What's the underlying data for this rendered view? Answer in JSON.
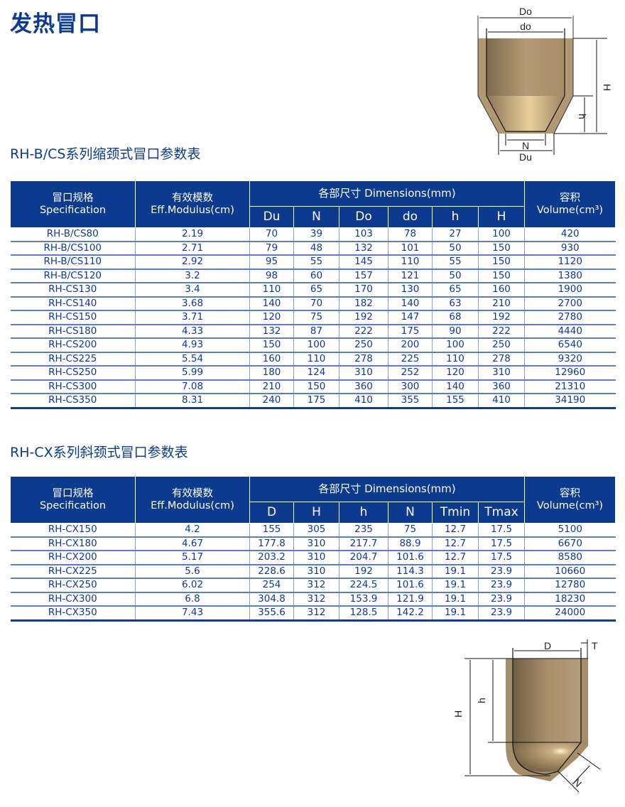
{
  "title": "发热冒口",
  "table1": {
    "heading": "RH-B/CS系列缩颈式冒口参数表",
    "spec_cn": "冒口规格",
    "spec_en": "Specification",
    "mod_cn": "有效模数",
    "mod_en": "Eff.Modulus(cm)",
    "dims": "各部尺寸  Dimensions(mm)",
    "vol_cn": "容积",
    "vol_en": "Volume(cm³)",
    "cols": [
      "Du",
      "N",
      "Do",
      "do",
      "h",
      "H"
    ],
    "rows": [
      [
        "RH-B/CS80",
        "2.19",
        "70",
        "39",
        "103",
        "78",
        "27",
        "100",
        "420"
      ],
      [
        "RH-B/CS100",
        "2.71",
        "79",
        "48",
        "132",
        "101",
        "50",
        "150",
        "930"
      ],
      [
        "RH-B/CS110",
        "2.92",
        "95",
        "55",
        "145",
        "110",
        "55",
        "150",
        "1120"
      ],
      [
        "RH-B/CS120",
        "3.2",
        "98",
        "60",
        "157",
        "121",
        "50",
        "150",
        "1380"
      ],
      [
        "RH-CS130",
        "3.4",
        "110",
        "65",
        "170",
        "130",
        "65",
        "160",
        "1900"
      ],
      [
        "RH-CS140",
        "3.68",
        "140",
        "70",
        "182",
        "140",
        "63",
        "210",
        "2700"
      ],
      [
        "RH-CS150",
        "3.71",
        "120",
        "75",
        "192",
        "147",
        "68",
        "192",
        "2780"
      ],
      [
        "RH-CS180",
        "4.33",
        "132",
        "87",
        "222",
        "175",
        "90",
        "222",
        "4440"
      ],
      [
        "RH-CS200",
        "4.93",
        "150",
        "100",
        "250",
        "200",
        "100",
        "250",
        "6540"
      ],
      [
        "RH-CS225",
        "5.54",
        "160",
        "110",
        "278",
        "225",
        "110",
        "278",
        "9320"
      ],
      [
        "RH-CS250",
        "5.99",
        "180",
        "124",
        "310",
        "252",
        "120",
        "310",
        "12960"
      ],
      [
        "RH-CS300",
        "7.08",
        "210",
        "150",
        "360",
        "300",
        "140",
        "360",
        "21310"
      ],
      [
        "RH-CS350",
        "8.31",
        "240",
        "175",
        "410",
        "355",
        "155",
        "410",
        "34190"
      ]
    ]
  },
  "table2": {
    "heading": "RH-CX系列斜颈式冒口参数表",
    "spec_cn": "冒口规格",
    "spec_en": "Specification",
    "mod_cn": "有效模数",
    "mod_en": "Eff.Modulus(cm)",
    "dims": "各部尺寸  Dimensions(mm)",
    "vol_cn": "容积",
    "vol_en": "Volume(cm³)",
    "cols": [
      "D",
      "H",
      "h",
      "N",
      "Tmin",
      "Tmax"
    ],
    "rows": [
      [
        "RH-CX150",
        "4.2",
        "155",
        "305",
        "235",
        "75",
        "12.7",
        "17.5",
        "5100"
      ],
      [
        "RH-CX180",
        "4.67",
        "177.8",
        "310",
        "217.7",
        "88.9",
        "12.7",
        "17.5",
        "6670"
      ],
      [
        "RH-CX200",
        "5.17",
        "203.2",
        "310",
        "204.7",
        "101.6",
        "12.7",
        "17.5",
        "8580"
      ],
      [
        "RH-CX225",
        "5.6",
        "228.6",
        "310",
        "192",
        "114.3",
        "19.1",
        "23.9",
        "10660"
      ],
      [
        "RH-CX250",
        "6.02",
        "254",
        "312",
        "224.5",
        "101.6",
        "19.1",
        "23.9",
        "12780"
      ],
      [
        "RH-CX300",
        "6.8",
        "304.8",
        "312",
        "153.9",
        "121.9",
        "19.1",
        "23.9",
        "18230"
      ],
      [
        "RH-CX350",
        "7.43",
        "355.6",
        "312",
        "128.5",
        "142.2",
        "19.1",
        "23.9",
        "24000"
      ]
    ]
  },
  "diagram1": {
    "labels": {
      "Do": "Do",
      "do": "do",
      "H": "H",
      "h": "h",
      "N": "N",
      "Du": "Du"
    }
  },
  "diagram2": {
    "labels": {
      "D": "D",
      "T": "T",
      "H": "H",
      "h": "h",
      "N": "N"
    }
  },
  "colors": {
    "brand_blue": "#0b3a8f",
    "riser_tan": "#a88f6a"
  }
}
